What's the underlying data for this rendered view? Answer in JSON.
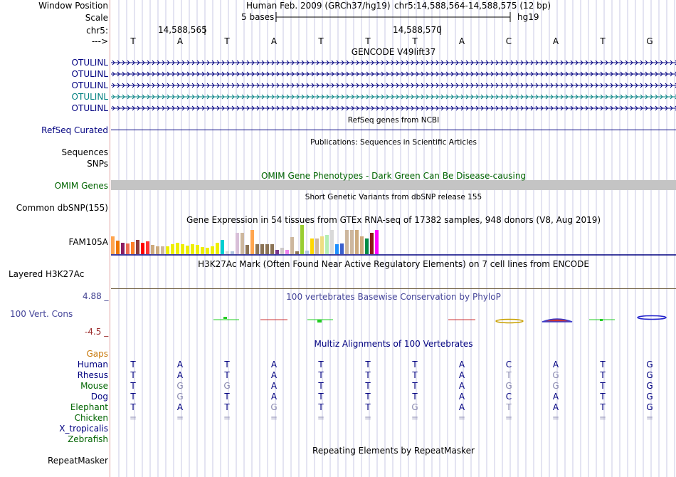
{
  "colors": {
    "navy": "#000080",
    "green": "#006400",
    "orange": "#C8780A",
    "gene_highlight": "#008080",
    "grid": "#C8C8E6",
    "conservation": "#444499",
    "cons_max": "#404090",
    "cons_min": "#9B2C2C",
    "omim_bar": "#C4C4C4",
    "separator_red": "#E0A0A0",
    "h3k27ac_line": "#6B5A3A",
    "dim_base": "#8A8AB0"
  },
  "header": {
    "window_position_label": "Window Position",
    "assembly_text": "Human Feb. 2009 (GRCh37/hg19)",
    "position_text": "chr5:14,588,564-14,588,575 (12 bp)",
    "scale_label": "Scale",
    "scale_text": "5 bases",
    "scale_db": "hg19",
    "chrom_label": "chr5:",
    "coord_1": "14,588,565",
    "coord_2": "14,588,570",
    "strand_label": "--->",
    "sequence": [
      "T",
      "A",
      "T",
      "A",
      "T",
      "T",
      "T",
      "A",
      "C",
      "A",
      "T",
      "G"
    ]
  },
  "gencode": {
    "title": "GENCODE V49lift37",
    "transcripts": [
      {
        "name": "OTULINL",
        "highlight": false
      },
      {
        "name": "OTULINL",
        "highlight": false
      },
      {
        "name": "OTULINL",
        "highlight": false
      },
      {
        "name": "OTULINL",
        "highlight": true
      },
      {
        "name": "OTULINL",
        "highlight": false
      }
    ]
  },
  "refseq": {
    "title": "RefSeq genes from NCBI",
    "label": "RefSeq Curated"
  },
  "publications": {
    "title": "Publications: Sequences in Scientific Articles",
    "label_1": "Sequences",
    "label_2": "SNPs"
  },
  "omim": {
    "title": "OMIM Gene Phenotypes - Dark Green Can Be Disease-causing",
    "label": "OMIM Genes"
  },
  "dbsnp": {
    "title": "Short Genetic Variants from dbSNP release 155",
    "label": "Common dbSNP(155)"
  },
  "gtex": {
    "title": "Gene Expression in 54 tissues from GTEx RNA-seq of 17382 samples, 948 donors (V8, Aug 2019)",
    "label": "FAM105A",
    "bars": [
      {
        "value": 0.62,
        "color": "#FFA54F"
      },
      {
        "value": 0.47,
        "color": "#EE7600"
      },
      {
        "value": 0.38,
        "color": "#8B1C62"
      },
      {
        "value": 0.36,
        "color": "#EE6A50"
      },
      {
        "value": 0.42,
        "color": "#FF7F24"
      },
      {
        "value": 0.48,
        "color": "#8B3A3A"
      },
      {
        "value": 0.4,
        "color": "#FF0000"
      },
      {
        "value": 0.44,
        "color": "#FF3030"
      },
      {
        "value": 0.32,
        "color": "#CDAA7D"
      },
      {
        "value": 0.28,
        "color": "#CDAA7D"
      },
      {
        "value": 0.26,
        "color": "#CDB79E"
      },
      {
        "value": 0.28,
        "color": "#EEEE00"
      },
      {
        "value": 0.35,
        "color": "#EEEE00"
      },
      {
        "value": 0.38,
        "color": "#EEEE00"
      },
      {
        "value": 0.34,
        "color": "#EEEE00"
      },
      {
        "value": 0.3,
        "color": "#EEEE00"
      },
      {
        "value": 0.34,
        "color": "#EEEE00"
      },
      {
        "value": 0.32,
        "color": "#EEEE00"
      },
      {
        "value": 0.24,
        "color": "#EEEE00"
      },
      {
        "value": 0.22,
        "color": "#EEEE00"
      },
      {
        "value": 0.28,
        "color": "#EEEE00"
      },
      {
        "value": 0.38,
        "color": "#EEEE00"
      },
      {
        "value": 0.48,
        "color": "#00CED1"
      },
      {
        "value": 0.1,
        "color": "#D9D9D9"
      },
      {
        "value": 0.1,
        "color": "#B0C4DE"
      },
      {
        "value": 0.72,
        "color": "#D8BFD8"
      },
      {
        "value": 0.72,
        "color": "#CDB79E"
      },
      {
        "value": 0.32,
        "color": "#8B7355"
      },
      {
        "value": 0.82,
        "color": "#FFA54F"
      },
      {
        "value": 0.34,
        "color": "#8B7355"
      },
      {
        "value": 0.34,
        "color": "#8B7355"
      },
      {
        "value": 0.34,
        "color": "#8B7355"
      },
      {
        "value": 0.34,
        "color": "#8B7355"
      },
      {
        "value": 0.14,
        "color": "#7A378B"
      },
      {
        "value": 0.22,
        "color": "#CDC9C9"
      },
      {
        "value": 0.14,
        "color": "#EE82EE"
      },
      {
        "value": 0.58,
        "color": "#CDB79E"
      },
      {
        "value": 0.1,
        "color": "#8B7355"
      },
      {
        "value": 1.0,
        "color": "#9ACD32"
      },
      {
        "value": 0.12,
        "color": "#B0C4DE"
      },
      {
        "value": 0.54,
        "color": "#FFD700"
      },
      {
        "value": 0.54,
        "color": "#CDB79E"
      },
      {
        "value": 0.62,
        "color": "#EEDD82"
      },
      {
        "value": 0.66,
        "color": "#B4EEB4"
      },
      {
        "value": 0.84,
        "color": "#D9D9D9"
      },
      {
        "value": 0.34,
        "color": "#1E90FF"
      },
      {
        "value": 0.36,
        "color": "#3A5FCD"
      },
      {
        "value": 0.84,
        "color": "#CDB79E"
      },
      {
        "value": 0.84,
        "color": "#CDB79E"
      },
      {
        "value": 0.84,
        "color": "#CDAA7D"
      },
      {
        "value": 0.62,
        "color": "#CDAA7D"
      },
      {
        "value": 0.54,
        "color": "#008B45"
      },
      {
        "value": 0.74,
        "color": "#8B1A1A"
      },
      {
        "value": 0.84,
        "color": "#FF00FF"
      }
    ]
  },
  "h3k27ac": {
    "title": "H3K27Ac Mark (Often Found Near Active Regulatory Elements) on 7 cell lines from ENCODE",
    "label": "Layered H3K27Ac"
  },
  "conservation": {
    "title": "100 vertebrates Basewise Conservation by PhyloP",
    "label": "100 Vert. Cons",
    "max_label": "4.88 _",
    "min_label": "-4.5 _"
  },
  "multiz": {
    "title": "Multiz Alignments of 100 Vertebrates",
    "gaps_label": "Gaps",
    "species": [
      {
        "name": "Human",
        "color": "#000080",
        "bases": [
          "T",
          "A",
          "T",
          "A",
          "T",
          "T",
          "T",
          "A",
          "C",
          "A",
          "T",
          "G"
        ],
        "dim": [
          0,
          0,
          0,
          0,
          0,
          0,
          0,
          0,
          0,
          0,
          0,
          0
        ]
      },
      {
        "name": "Rhesus",
        "color": "#000080",
        "bases": [
          "T",
          "A",
          "T",
          "A",
          "T",
          "T",
          "T",
          "A",
          "T",
          "G",
          "T",
          "G"
        ],
        "dim": [
          0,
          0,
          0,
          0,
          0,
          0,
          0,
          0,
          1,
          1,
          0,
          0
        ]
      },
      {
        "name": "Mouse",
        "color": "#006400",
        "bases": [
          "T",
          "G",
          "G",
          "A",
          "T",
          "T",
          "T",
          "A",
          "G",
          "G",
          "T",
          "G"
        ],
        "dim": [
          0,
          1,
          1,
          0,
          0,
          0,
          0,
          0,
          1,
          1,
          0,
          0
        ]
      },
      {
        "name": "Dog",
        "color": "#000080",
        "bases": [
          "T",
          "G",
          "T",
          "A",
          "T",
          "T",
          "T",
          "A",
          "C",
          "A",
          "T",
          "G"
        ],
        "dim": [
          0,
          1,
          0,
          0,
          0,
          0,
          0,
          0,
          0,
          0,
          0,
          0
        ]
      },
      {
        "name": "Elephant",
        "color": "#006400",
        "bases": [
          "T",
          "A",
          "T",
          "G",
          "T",
          "T",
          "G",
          "A",
          "T",
          "A",
          "T",
          "G"
        ],
        "dim": [
          0,
          0,
          0,
          1,
          0,
          0,
          1,
          0,
          1,
          0,
          0,
          0
        ]
      },
      {
        "name": "Chicken",
        "color": "#006400",
        "bases": [
          "=",
          "=",
          "=",
          "=",
          "=",
          "=",
          "=",
          "=",
          "=",
          "=",
          "=",
          "="
        ],
        "dim": [
          1,
          1,
          1,
          1,
          1,
          1,
          1,
          1,
          1,
          1,
          1,
          1
        ]
      },
      {
        "name": "X_tropicalis",
        "color": "#000080",
        "bases": [],
        "dim": []
      },
      {
        "name": "Zebrafish",
        "color": "#006400",
        "bases": [],
        "dim": []
      }
    ]
  },
  "repeatmasker": {
    "title": "Repeating Elements by RepeatMasker",
    "label": "RepeatMasker"
  }
}
